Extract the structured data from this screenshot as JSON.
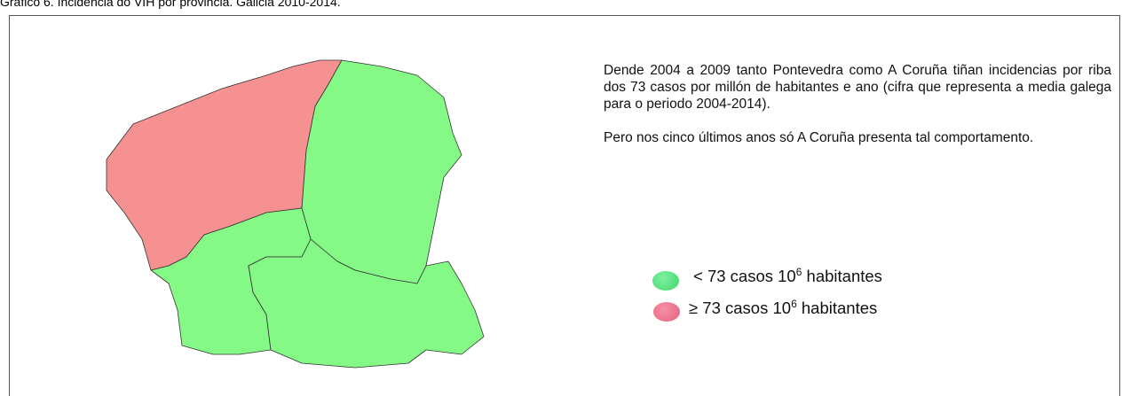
{
  "title": "Gráfico 6. Incidencia do VIH por provincia. Galicia 2010-2014.",
  "paragraphs": [
    "Dende 2004 a 2009 tanto Pontevedra como A Coruña tiñan incidencias por riba dos 73 casos por millón de habitantes e ano (cifra que representa a media galega para o periodo 2004-2014).",
    "Pero nos cinco últimos anos só A Coruña presenta tal comportamento."
  ],
  "legend": [
    {
      "text": "< 73 casos 10",
      "sup": "6",
      "after": " habitantes"
    },
    {
      "text": "≥ 73 casos 10",
      "sup": "6",
      "after": " habitantes"
    }
  ]
}
